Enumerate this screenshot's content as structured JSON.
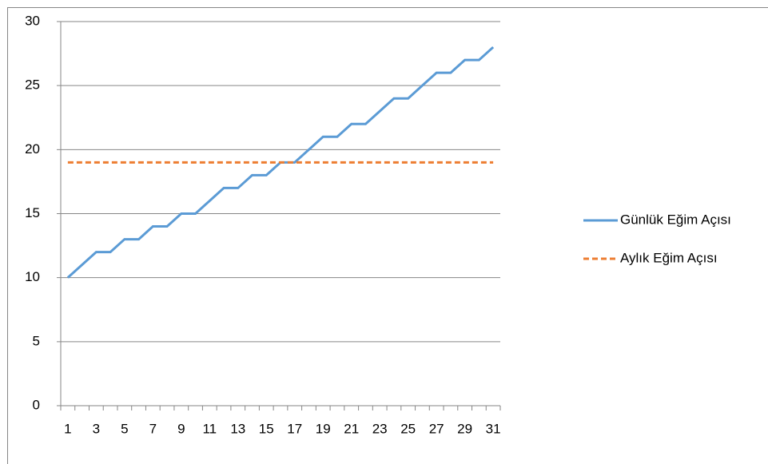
{
  "chart_data": {
    "type": "line",
    "categories": [
      "1",
      null,
      "3",
      null,
      "5",
      null,
      "7",
      null,
      "9",
      null,
      "11",
      null,
      "13",
      null,
      "15",
      null,
      "17",
      null,
      "19",
      null,
      "21",
      null,
      "23",
      null,
      "25",
      null,
      "27",
      null,
      "29",
      null,
      "31"
    ],
    "series": [
      {
        "name": "Günlük Eğim Açısı",
        "color": "#5b9bd5",
        "dash": false,
        "values": [
          10,
          11,
          12,
          12,
          13,
          13,
          14,
          14,
          15,
          15,
          16,
          17,
          17,
          18,
          18,
          19,
          19,
          20,
          21,
          21,
          22,
          22,
          23,
          24,
          24,
          25,
          26,
          26,
          27,
          27,
          28
        ]
      },
      {
        "name": "Aylık Eğim Açısı",
        "color": "#ed7d31",
        "dash": true,
        "values": [
          19,
          19,
          19,
          19,
          19,
          19,
          19,
          19,
          19,
          19,
          19,
          19,
          19,
          19,
          19,
          19,
          19,
          19,
          19,
          19,
          19,
          19,
          19,
          19,
          19,
          19,
          19,
          19,
          19,
          19,
          19
        ]
      }
    ],
    "ylim": [
      0,
      30
    ],
    "yticks": [
      0,
      5,
      10,
      15,
      20,
      25,
      30
    ],
    "grid": true,
    "legend": "right"
  }
}
